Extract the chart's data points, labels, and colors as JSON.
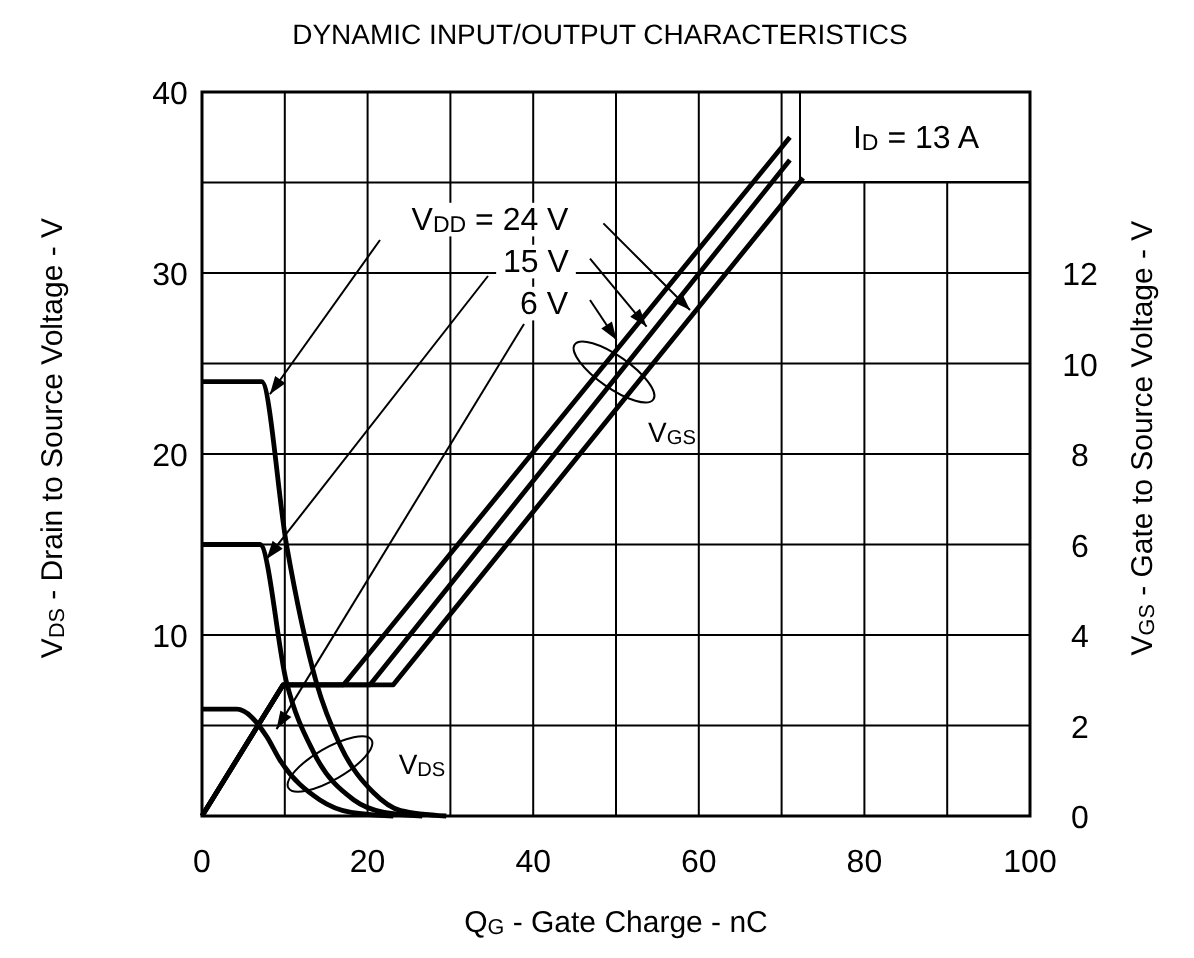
{
  "chart_data": {
    "type": "line",
    "title": "DYNAMIC INPUT/OUTPUT CHARACTERISTICS",
    "xlabel": "Q$_{G}$ -  Gate Charge - nC",
    "ylabel": "V$_{DS}$ -  Drain to Source Voltage - V",
    "y2label": "V$_{GS}$ - Gate to Source Voltage - V",
    "xlim": [
      0,
      100
    ],
    "xticks": [
      0,
      {
        "value": 10,
        "label": null
      },
      20,
      {
        "value": 30,
        "label": null
      },
      40,
      {
        "value": 50,
        "label": null
      },
      60,
      {
        "value": 70,
        "label": null
      },
      80,
      {
        "value": 90,
        "label": null
      },
      100
    ],
    "ylim": [
      0,
      40
    ],
    "yticks": [
      {
        "value": 5,
        "label": null
      },
      10,
      {
        "value": 15,
        "label": null
      },
      20,
      {
        "value": 25,
        "label": null
      },
      30,
      {
        "value": 35,
        "label": null
      },
      40
    ],
    "y2lim": [
      0,
      16
    ],
    "y2ticks": [
      0,
      2,
      4,
      6,
      8,
      10,
      12
    ],
    "grid": true,
    "marker": "none",
    "line_style": "solid",
    "annotations": [
      "I$_{D}$ = 13 A",
      {
        "text": "V$_{DD}$ = 24 V",
        "x": 8.2,
        "y": 23.3
      },
      {
        "text": "15 V",
        "x": 7.8,
        "y": 14.2
      },
      {
        "text": "6 V",
        "x": 9,
        "y": 4.8
      },
      "V$_{GS}$",
      "V$_{DS}$"
    ],
    "series": [
      {
        "color": "#000000",
        "axis": "y",
        "x": [
          0,
          7.2,
          10.2,
          13.8,
          16.7,
          20.7,
          24,
          29.5
        ],
        "values": [
          24,
          24,
          15,
          7.4,
          3.9,
          1.3,
          0.3,
          0
        ]
      },
      {
        "color": "#000000",
        "axis": "y",
        "x": [
          0,
          7,
          10.2,
          13.5,
          18.3,
          22,
          26.6
        ],
        "values": [
          15,
          15,
          7.4,
          3.5,
          0.9,
          0.2,
          0
        ]
      },
      {
        "color": "#000000",
        "axis": "y",
        "x": [
          0,
          4.2,
          7.8,
          9.4,
          14.2,
          18,
          23.1
        ],
        "values": [
          5.9,
          5.9,
          4.4,
          3.1,
          0.9,
          0.2,
          0
        ]
      },
      {
        "color": "#000000",
        "axis": "y2",
        "x": [
          0,
          9.8,
          23.1,
          72.6
        ],
        "values": [
          0,
          2.9,
          2.9,
          14.1
        ]
      },
      {
        "color": "#000000",
        "axis": "y2",
        "x": [
          0,
          9.8,
          20.3,
          71
        ],
        "values": [
          0,
          2.9,
          2.9,
          14.5
        ]
      },
      {
        "color": "#000000",
        "axis": "y2",
        "x": [
          0,
          9.8,
          17.1,
          71
        ],
        "values": [
          0,
          2.9,
          2.9,
          15
        ]
      }
    ]
  }
}
